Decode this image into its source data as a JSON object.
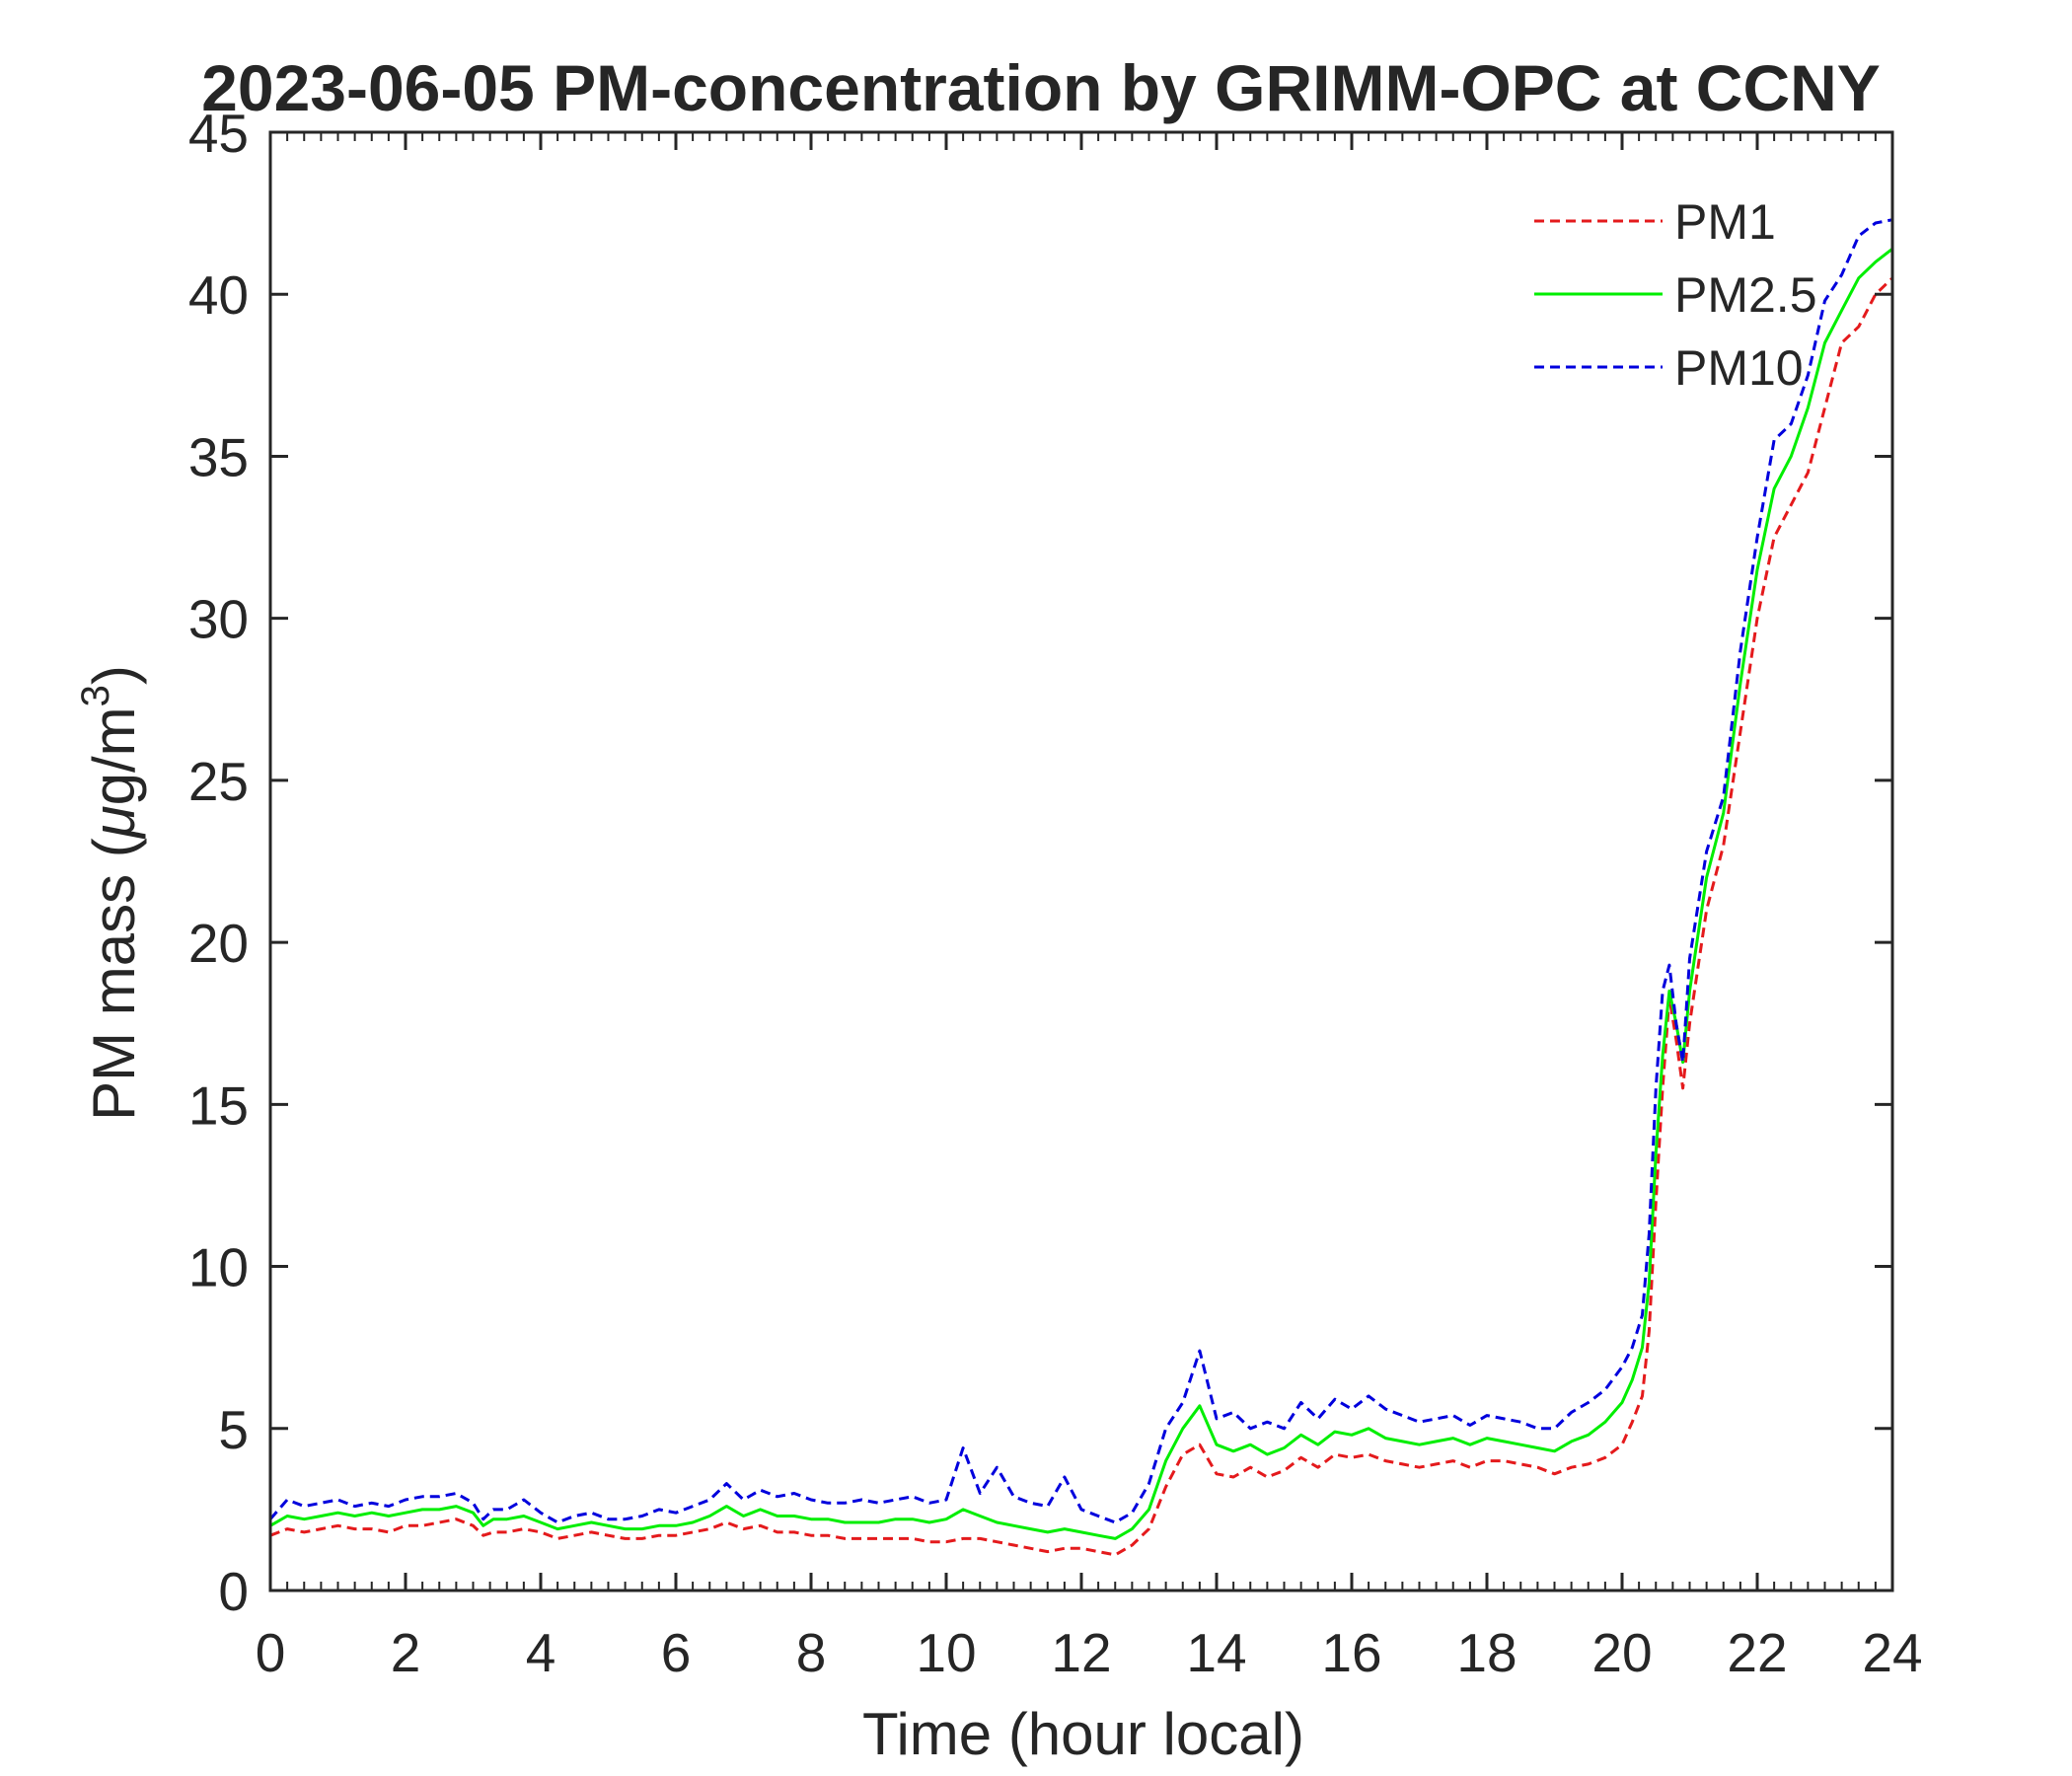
{
  "chart_data": {
    "type": "line",
    "title": "2023-06-05 PM-concentration by GRIMM-OPC at CCNY",
    "xlabel": "Time (hour local)",
    "ylabel_main": "PM mass (",
    "ylabel_mu": "μ",
    "ylabel_unit": "g/m",
    "ylabel_sup": "3",
    "ylabel_close": ")",
    "xlim": [
      0,
      24
    ],
    "ylim": [
      0,
      45
    ],
    "xticks": [
      0,
      2,
      4,
      6,
      8,
      10,
      12,
      14,
      16,
      18,
      20,
      22,
      24
    ],
    "yticks": [
      0,
      5,
      10,
      15,
      20,
      25,
      30,
      35,
      40,
      45
    ],
    "grid": false,
    "legend_position": "top-right",
    "series": [
      {
        "name": "PM1",
        "color": "#e41a1c",
        "style": "dashed",
        "x": [
          0.0,
          0.25,
          0.5,
          0.75,
          1.0,
          1.25,
          1.5,
          1.75,
          2.0,
          2.25,
          2.5,
          2.75,
          3.0,
          3.15,
          3.3,
          3.5,
          3.75,
          4.0,
          4.25,
          4.5,
          4.75,
          5.0,
          5.25,
          5.5,
          5.75,
          6.0,
          6.25,
          6.5,
          6.75,
          7.0,
          7.25,
          7.5,
          7.75,
          8.0,
          8.25,
          8.5,
          8.75,
          9.0,
          9.25,
          9.5,
          9.75,
          10.0,
          10.25,
          10.5,
          10.75,
          11.0,
          11.25,
          11.5,
          11.75,
          12.0,
          12.25,
          12.5,
          12.75,
          13.0,
          13.25,
          13.5,
          13.75,
          14.0,
          14.25,
          14.5,
          14.75,
          15.0,
          15.25,
          15.5,
          15.75,
          16.0,
          16.25,
          16.5,
          16.75,
          17.0,
          17.25,
          17.5,
          17.75,
          18.0,
          18.25,
          18.5,
          18.75,
          19.0,
          19.25,
          19.5,
          19.75,
          20.0,
          20.15,
          20.3,
          20.4,
          20.5,
          20.6,
          20.7,
          20.8,
          20.9,
          21.0,
          21.25,
          21.5,
          21.75,
          22.0,
          22.25,
          22.5,
          22.75,
          23.0,
          23.25,
          23.5,
          23.75,
          24.0
        ],
        "y": [
          1.7,
          1.9,
          1.8,
          1.9,
          2.0,
          1.9,
          1.9,
          1.8,
          2.0,
          2.0,
          2.1,
          2.2,
          2.0,
          1.7,
          1.8,
          1.8,
          1.9,
          1.8,
          1.6,
          1.7,
          1.8,
          1.7,
          1.6,
          1.6,
          1.7,
          1.7,
          1.8,
          1.9,
          2.1,
          1.9,
          2.0,
          1.8,
          1.8,
          1.7,
          1.7,
          1.6,
          1.6,
          1.6,
          1.6,
          1.6,
          1.5,
          1.5,
          1.6,
          1.6,
          1.5,
          1.4,
          1.3,
          1.2,
          1.3,
          1.3,
          1.2,
          1.1,
          1.4,
          1.9,
          3.2,
          4.2,
          4.5,
          3.6,
          3.5,
          3.8,
          3.5,
          3.7,
          4.1,
          3.8,
          4.2,
          4.1,
          4.2,
          4.0,
          3.9,
          3.8,
          3.9,
          4.0,
          3.8,
          4.0,
          4.0,
          3.9,
          3.8,
          3.6,
          3.8,
          3.9,
          4.1,
          4.5,
          5.2,
          6.0,
          8.0,
          12.0,
          15.5,
          18.3,
          17.0,
          15.5,
          17.5,
          21.0,
          23.0,
          26.5,
          30.0,
          32.5,
          33.5,
          34.5,
          36.5,
          38.5,
          39.0,
          40.0,
          40.5
        ]
      },
      {
        "name": "PM2.5",
        "color": "#00ee00",
        "style": "solid",
        "x": [
          0.0,
          0.25,
          0.5,
          0.75,
          1.0,
          1.25,
          1.5,
          1.75,
          2.0,
          2.25,
          2.5,
          2.75,
          3.0,
          3.15,
          3.3,
          3.5,
          3.75,
          4.0,
          4.25,
          4.5,
          4.75,
          5.0,
          5.25,
          5.5,
          5.75,
          6.0,
          6.25,
          6.5,
          6.75,
          7.0,
          7.25,
          7.5,
          7.75,
          8.0,
          8.25,
          8.5,
          8.75,
          9.0,
          9.25,
          9.5,
          9.75,
          10.0,
          10.25,
          10.5,
          10.75,
          11.0,
          11.25,
          11.5,
          11.75,
          12.0,
          12.25,
          12.5,
          12.75,
          13.0,
          13.25,
          13.5,
          13.75,
          14.0,
          14.25,
          14.5,
          14.75,
          15.0,
          15.25,
          15.5,
          15.75,
          16.0,
          16.25,
          16.5,
          16.75,
          17.0,
          17.25,
          17.5,
          17.75,
          18.0,
          18.25,
          18.5,
          18.75,
          19.0,
          19.25,
          19.5,
          19.75,
          20.0,
          20.15,
          20.3,
          20.4,
          20.5,
          20.6,
          20.7,
          20.8,
          20.9,
          21.0,
          21.25,
          21.5,
          21.75,
          22.0,
          22.25,
          22.5,
          22.75,
          23.0,
          23.25,
          23.5,
          23.75,
          24.0
        ],
        "y": [
          2.0,
          2.3,
          2.2,
          2.3,
          2.4,
          2.3,
          2.4,
          2.3,
          2.4,
          2.5,
          2.5,
          2.6,
          2.4,
          2.0,
          2.2,
          2.2,
          2.3,
          2.1,
          1.9,
          2.0,
          2.1,
          2.0,
          1.9,
          1.9,
          2.0,
          2.0,
          2.1,
          2.3,
          2.6,
          2.3,
          2.5,
          2.3,
          2.3,
          2.2,
          2.2,
          2.1,
          2.1,
          2.1,
          2.2,
          2.2,
          2.1,
          2.2,
          2.5,
          2.3,
          2.1,
          2.0,
          1.9,
          1.8,
          1.9,
          1.8,
          1.7,
          1.6,
          1.9,
          2.5,
          4.0,
          5.0,
          5.7,
          4.5,
          4.3,
          4.5,
          4.2,
          4.4,
          4.8,
          4.5,
          4.9,
          4.8,
          5.0,
          4.7,
          4.6,
          4.5,
          4.6,
          4.7,
          4.5,
          4.7,
          4.6,
          4.5,
          4.4,
          4.3,
          4.6,
          4.8,
          5.2,
          5.8,
          6.5,
          7.5,
          9.5,
          13.5,
          16.5,
          18.5,
          17.5,
          16.3,
          18.5,
          22.0,
          24.0,
          28.0,
          31.5,
          34.0,
          35.0,
          36.5,
          38.5,
          39.5,
          40.5,
          41.0,
          41.4
        ]
      },
      {
        "name": "PM10",
        "color": "#0000dd",
        "style": "dashed",
        "x": [
          0.0,
          0.25,
          0.5,
          0.75,
          1.0,
          1.25,
          1.5,
          1.75,
          2.0,
          2.25,
          2.5,
          2.75,
          3.0,
          3.15,
          3.3,
          3.5,
          3.75,
          4.0,
          4.25,
          4.5,
          4.75,
          5.0,
          5.25,
          5.5,
          5.75,
          6.0,
          6.25,
          6.5,
          6.75,
          7.0,
          7.25,
          7.5,
          7.75,
          8.0,
          8.25,
          8.5,
          8.75,
          9.0,
          9.25,
          9.5,
          9.75,
          10.0,
          10.25,
          10.5,
          10.75,
          11.0,
          11.25,
          11.5,
          11.75,
          12.0,
          12.25,
          12.5,
          12.75,
          13.0,
          13.25,
          13.5,
          13.75,
          14.0,
          14.25,
          14.5,
          14.75,
          15.0,
          15.25,
          15.5,
          15.75,
          16.0,
          16.25,
          16.5,
          16.75,
          17.0,
          17.25,
          17.5,
          17.75,
          18.0,
          18.25,
          18.5,
          18.75,
          19.0,
          19.25,
          19.5,
          19.75,
          20.0,
          20.15,
          20.3,
          20.4,
          20.5,
          20.6,
          20.7,
          20.8,
          20.9,
          21.0,
          21.25,
          21.5,
          21.75,
          22.0,
          22.25,
          22.5,
          22.75,
          23.0,
          23.25,
          23.5,
          23.75,
          24.0
        ],
        "y": [
          2.2,
          2.8,
          2.6,
          2.7,
          2.8,
          2.6,
          2.7,
          2.6,
          2.8,
          2.9,
          2.9,
          3.0,
          2.7,
          2.2,
          2.5,
          2.5,
          2.8,
          2.4,
          2.1,
          2.3,
          2.4,
          2.2,
          2.2,
          2.3,
          2.5,
          2.4,
          2.6,
          2.8,
          3.3,
          2.8,
          3.1,
          2.9,
          3.0,
          2.8,
          2.7,
          2.7,
          2.8,
          2.7,
          2.8,
          2.9,
          2.7,
          2.8,
          4.4,
          3.0,
          3.8,
          2.9,
          2.7,
          2.6,
          3.5,
          2.5,
          2.3,
          2.1,
          2.4,
          3.3,
          5.0,
          5.8,
          7.4,
          5.3,
          5.5,
          5.0,
          5.2,
          5.0,
          5.8,
          5.3,
          5.9,
          5.6,
          6.0,
          5.6,
          5.4,
          5.2,
          5.3,
          5.4,
          5.1,
          5.4,
          5.3,
          5.2,
          5.0,
          5.0,
          5.5,
          5.8,
          6.2,
          6.9,
          7.5,
          8.5,
          11.0,
          15.5,
          18.5,
          19.3,
          17.5,
          16.3,
          19.5,
          22.8,
          24.5,
          29.0,
          32.5,
          35.5,
          36.0,
          37.5,
          39.8,
          40.6,
          41.8,
          42.2,
          42.3
        ]
      }
    ]
  }
}
